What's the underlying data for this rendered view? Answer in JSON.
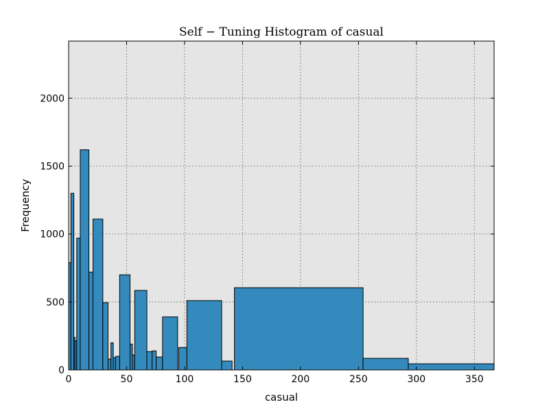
{
  "chart_data": {
    "type": "bar",
    "title": "Self − Tuning Histogram of casual",
    "xlabel": "casual",
    "ylabel": "Frequency",
    "xlim": [
      0,
      367
    ],
    "ylim": [
      0,
      2420
    ],
    "x_ticks": [
      0,
      50,
      100,
      150,
      200,
      250,
      300,
      350
    ],
    "y_ticks": [
      0,
      500,
      1000,
      1500,
      2000
    ],
    "grid": true,
    "bins": [
      {
        "start": 0,
        "end": 2,
        "value": 790
      },
      {
        "start": 2,
        "end": 4.5,
        "value": 1300
      },
      {
        "start": 4.5,
        "end": 5.5,
        "value": 240
      },
      {
        "start": 5.5,
        "end": 7,
        "value": 215
      },
      {
        "start": 7,
        "end": 10,
        "value": 970
      },
      {
        "start": 10,
        "end": 17.5,
        "value": 1620
      },
      {
        "start": 17.5,
        "end": 21,
        "value": 720
      },
      {
        "start": 21,
        "end": 29.5,
        "value": 1110
      },
      {
        "start": 29.5,
        "end": 34,
        "value": 495
      },
      {
        "start": 34,
        "end": 36.5,
        "value": 80
      },
      {
        "start": 36.5,
        "end": 38.5,
        "value": 200
      },
      {
        "start": 38.5,
        "end": 40.5,
        "value": 90
      },
      {
        "start": 40.5,
        "end": 44,
        "value": 100
      },
      {
        "start": 44,
        "end": 53,
        "value": 700
      },
      {
        "start": 53,
        "end": 55,
        "value": 190
      },
      {
        "start": 55,
        "end": 57,
        "value": 110
      },
      {
        "start": 57,
        "end": 67.5,
        "value": 585
      },
      {
        "start": 67.5,
        "end": 72,
        "value": 135
      },
      {
        "start": 72,
        "end": 75.5,
        "value": 140
      },
      {
        "start": 75.5,
        "end": 81,
        "value": 95
      },
      {
        "start": 81,
        "end": 94,
        "value": 390
      },
      {
        "start": 95,
        "end": 102,
        "value": 165
      },
      {
        "start": 102,
        "end": 132,
        "value": 510
      },
      {
        "start": 132,
        "end": 141,
        "value": 65
      },
      {
        "start": 143,
        "end": 254,
        "value": 605
      },
      {
        "start": 254,
        "end": 293,
        "value": 85
      },
      {
        "start": 293,
        "end": 367,
        "value": 45
      }
    ]
  }
}
